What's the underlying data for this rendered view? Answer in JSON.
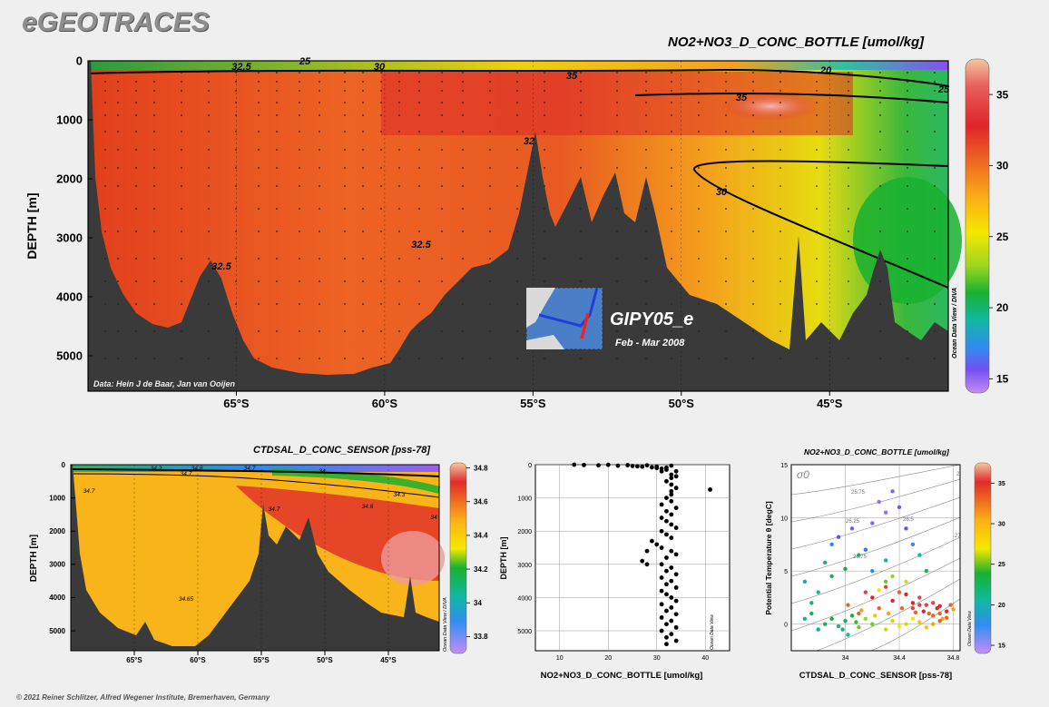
{
  "app_title": "eGEOTRACES",
  "footer_credit": "© 2021 Reiner Schlitzer, Alfred Wegener Institute, Bremerhaven, Germany",
  "colors": {
    "background": "#efefef",
    "seafloor": "#3a3a3a",
    "frame": "#000000"
  },
  "chart_data": [
    {
      "id": "main_section",
      "type": "heatmap",
      "title": "NO2+NO3_D_CONC_BOTTLE [umol/kg]",
      "ylabel": "DEPTH [m]",
      "x_ticks": [
        "65°S",
        "60°S",
        "55°S",
        "50°S",
        "45°S"
      ],
      "y_ticks": [
        "0",
        "1000",
        "2000",
        "3000",
        "4000",
        "5000"
      ],
      "xlim": [
        -70,
        -41
      ],
      "ylim": [
        5600,
        0
      ],
      "colorbar_ticks": [
        "35",
        "30",
        "25",
        "20",
        "15"
      ],
      "colorbar_range": [
        14,
        37.5
      ],
      "colorbar_side_label": "Ocean Data View / DIVA",
      "contour_labels": [
        "32.5",
        "25",
        "30",
        "35",
        "20",
        "35",
        "25",
        "32",
        "30",
        "32.5",
        "32.5"
      ],
      "data_credit": "Data: Hein J de Baar, Jan van Ooijen",
      "cruise_name": "GIPY05_e",
      "cruise_dates": "Feb - Mar 2008"
    },
    {
      "id": "salinity_section",
      "type": "heatmap",
      "title": "CTDSAL_D_CONC_SENSOR [pss-78]",
      "ylabel": "DEPTH [m]",
      "x_ticks": [
        "65°S",
        "60°S",
        "55°S",
        "50°S",
        "45°S"
      ],
      "y_ticks": [
        "0",
        "1000",
        "2000",
        "3000",
        "4000",
        "5000"
      ],
      "xlim": [
        -70,
        -41
      ],
      "ylim": [
        5600,
        0
      ],
      "colorbar_ticks": [
        "34.8",
        "34.6",
        "34.4",
        "34.2",
        "34",
        "33.8"
      ],
      "colorbar_range": [
        33.7,
        34.83
      ],
      "colorbar_side_label": "Ocean Data View / DIVA",
      "contour_labels": [
        "34.2",
        "34.7",
        "34.7",
        "34.8",
        "34",
        "34.3",
        "34.7",
        "34.6",
        "34.7",
        "34.65",
        "34"
      ]
    },
    {
      "id": "nitrate_profile",
      "type": "scatter",
      "xlabel": "NO2+NO3_D_CONC_BOTTLE [umol/kg]",
      "ylabel": "DEPTH [m]",
      "x_ticks": [
        "10",
        "20",
        "30",
        "40"
      ],
      "y_ticks": [
        "0",
        "1000",
        "2000",
        "3000",
        "4000",
        "5000"
      ],
      "xlim": [
        5,
        45
      ],
      "ylim": [
        5600,
        0
      ],
      "side_label": "Ocean Data View",
      "points": [
        [
          13,
          0
        ],
        [
          15,
          10
        ],
        [
          18,
          20
        ],
        [
          20,
          5
        ],
        [
          22,
          30
        ],
        [
          24,
          15
        ],
        [
          25,
          40
        ],
        [
          26,
          50
        ],
        [
          27,
          60
        ],
        [
          28,
          20
        ],
        [
          29,
          80
        ],
        [
          30,
          100
        ],
        [
          31,
          120
        ],
        [
          32,
          150
        ],
        [
          33,
          30
        ],
        [
          34,
          200
        ],
        [
          30,
          60
        ],
        [
          32,
          90
        ],
        [
          31,
          200
        ],
        [
          33,
          300
        ],
        [
          34,
          350
        ],
        [
          33,
          400
        ],
        [
          32,
          500
        ],
        [
          33,
          600
        ],
        [
          34,
          700
        ],
        [
          33,
          800
        ],
        [
          41,
          750
        ],
        [
          33,
          900
        ],
        [
          32,
          1000
        ],
        [
          33,
          1100
        ],
        [
          31,
          1200
        ],
        [
          34,
          1300
        ],
        [
          32,
          1400
        ],
        [
          33,
          1500
        ],
        [
          31,
          1600
        ],
        [
          32,
          1700
        ],
        [
          33,
          1800
        ],
        [
          34,
          1900
        ],
        [
          31,
          2000
        ],
        [
          32,
          2100
        ],
        [
          33,
          2200
        ],
        [
          29,
          2300
        ],
        [
          28,
          2600
        ],
        [
          30,
          2400
        ],
        [
          31,
          2500
        ],
        [
          33,
          2600
        ],
        [
          34,
          2700
        ],
        [
          32,
          2800
        ],
        [
          27,
          2900
        ],
        [
          28,
          3000
        ],
        [
          31,
          3000
        ],
        [
          33,
          3100
        ],
        [
          32,
          3200
        ],
        [
          34,
          3300
        ],
        [
          31,
          3400
        ],
        [
          33,
          3500
        ],
        [
          32,
          3600
        ],
        [
          34,
          3700
        ],
        [
          31,
          3800
        ],
        [
          32,
          3900
        ],
        [
          33,
          4000
        ],
        [
          34,
          4100
        ],
        [
          31,
          4200
        ],
        [
          33,
          4300
        ],
        [
          32,
          4400
        ],
        [
          34,
          4500
        ],
        [
          31,
          4600
        ],
        [
          33,
          4700
        ],
        [
          32,
          4800
        ],
        [
          34,
          4900
        ],
        [
          31,
          5000
        ],
        [
          33,
          5100
        ],
        [
          32,
          5200
        ],
        [
          34,
          5300
        ],
        [
          32,
          5400
        ]
      ]
    },
    {
      "id": "ts_diagram",
      "type": "scatter",
      "title": "NO2+NO3_D_CONC_BOTTLE [umol/kg]",
      "xlabel": "CTDSAL_D_CONC_SENSOR [pss-78]",
      "ylabel": "Potential Temperature θ [degC]",
      "x_ticks": [
        "34",
        "34.4",
        "34.8"
      ],
      "y_ticks": [
        "15",
        "10",
        "5",
        "0"
      ],
      "xlim": [
        33.6,
        34.85
      ],
      "ylim": [
        -2.5,
        15
      ],
      "colorbar_ticks": [
        "35",
        "30",
        "25",
        "20",
        "15"
      ],
      "colorbar_range": [
        14,
        37.5
      ],
      "colorbar_side_label": "Ocean Data View",
      "isopycnal_symbol": "σ0",
      "isopycnal_labels": [
        "25.75",
        "26.25",
        "26.5",
        "26.75",
        "27",
        "2"
      ],
      "points": [
        [
          34.75,
          1.2,
          34
        ],
        [
          34.7,
          1.0,
          33
        ],
        [
          34.72,
          0.5,
          32
        ],
        [
          34.68,
          1.5,
          34
        ],
        [
          34.65,
          0.8,
          33
        ],
        [
          34.6,
          1.8,
          35
        ],
        [
          34.58,
          1.2,
          34
        ],
        [
          34.55,
          2.5,
          35
        ],
        [
          34.5,
          2.0,
          34
        ],
        [
          34.45,
          2.8,
          34
        ],
        [
          34.4,
          3.0,
          33
        ],
        [
          34.35,
          2.2,
          34
        ],
        [
          34.3,
          3.5,
          35
        ],
        [
          34.25,
          1.5,
          33
        ],
        [
          34.2,
          2.5,
          34
        ],
        [
          34.15,
          3.0,
          35
        ],
        [
          34.1,
          1.0,
          33
        ],
        [
          34.5,
          0.5,
          30
        ],
        [
          34.55,
          0.2,
          31
        ],
        [
          34.45,
          0.0,
          29
        ],
        [
          34.4,
          -0.2,
          30
        ],
        [
          34.35,
          0.3,
          31
        ],
        [
          34.3,
          -0.5,
          29
        ],
        [
          34.6,
          -0.3,
          31
        ],
        [
          34.65,
          0.0,
          32
        ],
        [
          34.7,
          0.3,
          33
        ],
        [
          34.75,
          0.6,
          33
        ],
        [
          34.78,
          1.8,
          33
        ],
        [
          34.8,
          1.4,
          32
        ],
        [
          34.05,
          0.8,
          25
        ],
        [
          34.0,
          0.3,
          24
        ],
        [
          33.95,
          -0.2,
          23
        ],
        [
          33.9,
          0.5,
          25
        ],
        [
          33.85,
          0.0,
          24
        ],
        [
          33.8,
          -0.5,
          23
        ],
        [
          34.02,
          -1.0,
          22
        ],
        [
          33.98,
          -0.5,
          23
        ],
        [
          34.08,
          0.2,
          26
        ],
        [
          34.1,
          -0.3,
          27
        ],
        [
          34.15,
          0.5,
          28
        ],
        [
          34.2,
          0.0,
          27
        ],
        [
          33.75,
          1.0,
          24
        ],
        [
          33.7,
          0.5,
          23
        ],
        [
          33.9,
          4.5,
          24
        ],
        [
          34.0,
          5.2,
          25
        ],
        [
          33.85,
          5.8,
          23
        ],
        [
          34.1,
          6.5,
          24
        ],
        [
          34.2,
          5.0,
          20
        ],
        [
          34.3,
          6.0,
          22
        ],
        [
          34.15,
          7.0,
          19
        ],
        [
          33.9,
          7.5,
          20
        ],
        [
          33.95,
          8.2,
          18
        ],
        [
          34.05,
          9.0,
          17
        ],
        [
          34.2,
          9.5,
          16
        ],
        [
          34.3,
          10.5,
          15
        ],
        [
          34.25,
          11.5,
          15
        ],
        [
          34.35,
          12.5,
          16
        ],
        [
          34.4,
          11.0,
          17
        ],
        [
          34.45,
          9.0,
          18
        ],
        [
          34.5,
          7.5,
          20
        ],
        [
          34.55,
          6.5,
          22
        ],
        [
          34.6,
          5.0,
          24
        ],
        [
          33.8,
          3.0,
          22
        ],
        [
          33.75,
          2.0,
          23
        ],
        [
          33.7,
          4.0,
          21
        ],
        [
          34.3,
          4.0,
          27
        ],
        [
          34.35,
          4.5,
          28
        ],
        [
          34.45,
          4.0,
          29
        ],
        [
          34.25,
          3.2,
          30
        ],
        [
          34.5,
          1.5,
          35
        ],
        [
          34.55,
          1.8,
          35
        ],
        [
          34.65,
          2.0,
          35
        ],
        [
          34.7,
          1.7,
          34
        ],
        [
          34.62,
          1.0,
          33
        ],
        [
          34.52,
          1.1,
          33
        ],
        [
          34.42,
          1.5,
          33
        ],
        [
          34.32,
          1.0,
          32
        ],
        [
          34.22,
          0.8,
          31
        ],
        [
          34.12,
          1.3,
          32
        ],
        [
          34.02,
          1.8,
          33
        ]
      ]
    }
  ]
}
